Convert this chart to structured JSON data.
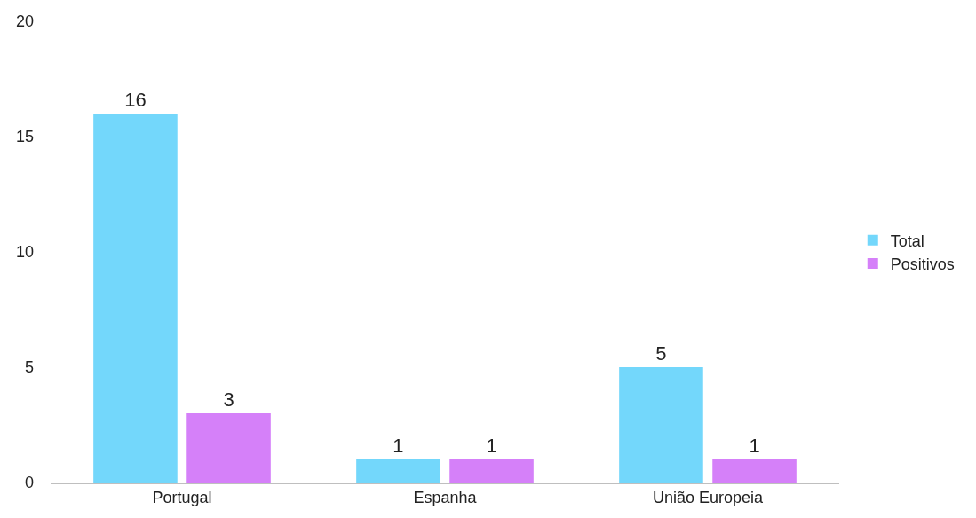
{
  "chart_data": {
    "type": "bar",
    "categories": [
      "Portugal",
      "Espanha",
      "União Europeia"
    ],
    "series": [
      {
        "name": "Total",
        "color": "#73d7fb",
        "values": [
          16,
          1,
          5
        ]
      },
      {
        "name": "Positivos",
        "color": "#d580f9",
        "values": [
          3,
          1,
          1
        ]
      }
    ],
    "ylim": [
      0,
      20
    ],
    "yticks": [
      0,
      5,
      10,
      15,
      20
    ],
    "grid": false,
    "legend": "right",
    "data_labels": true
  }
}
